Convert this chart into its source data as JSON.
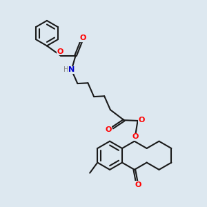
{
  "bg_color": "#dde8f0",
  "bond_color": "#1a1a1a",
  "oxygen_color": "#ff0000",
  "nitrogen_color": "#0000cc",
  "hydrogen_color": "#888888",
  "lw": 1.5,
  "xlim": [
    0.0,
    6.5
  ],
  "ylim": [
    0.0,
    7.5
  ],
  "figsize": [
    3.0,
    3.0
  ],
  "dpi": 100
}
